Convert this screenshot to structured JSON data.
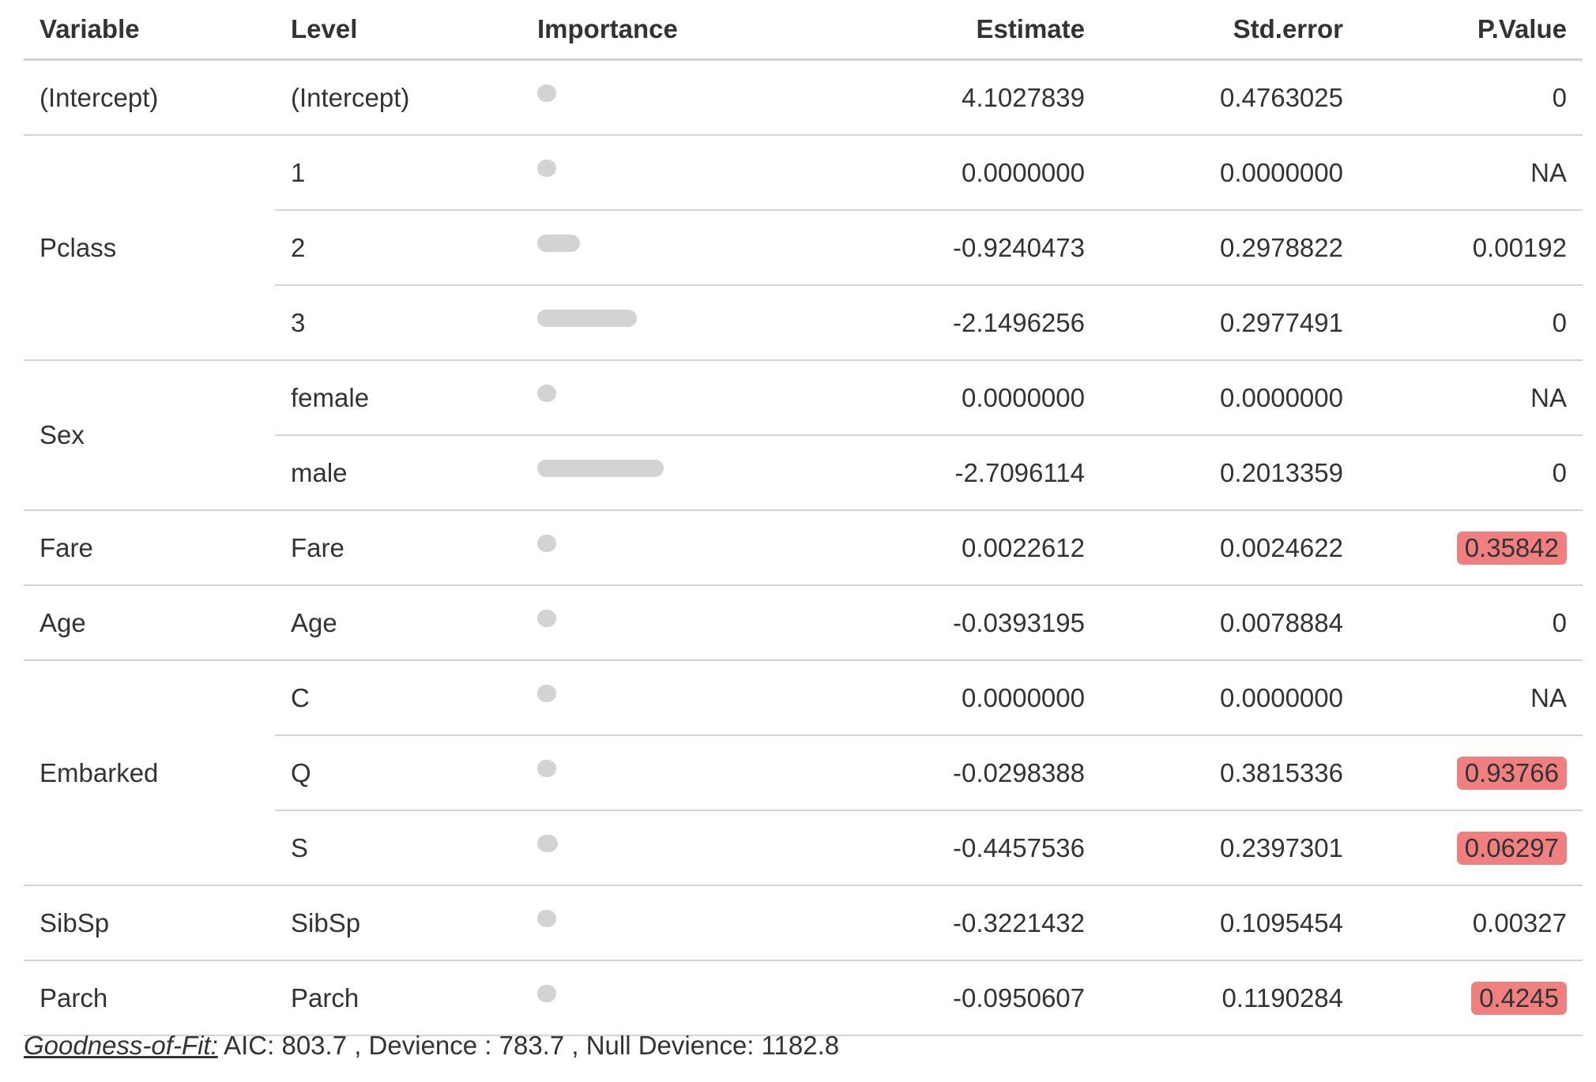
{
  "header": {
    "variable": "Variable",
    "level": "Level",
    "importance": "Importance",
    "estimate": "Estimate",
    "std_error": "Std.error",
    "p_value": "P.Value"
  },
  "rows": [
    {
      "variable": "(Intercept)",
      "level": "(Intercept)",
      "importance": 0.0,
      "estimate": "4.1027839",
      "std_error": "0.4763025",
      "p_value": "0",
      "highlight": false
    },
    {
      "variable": "Pclass",
      "level": "1",
      "importance": 0.0,
      "estimate": "0.0000000",
      "std_error": "0.0000000",
      "p_value": "NA",
      "highlight": false
    },
    {
      "variable": "",
      "level": "2",
      "importance": 0.34,
      "estimate": "-0.9240473",
      "std_error": "0.2978822",
      "p_value": "0.00192",
      "highlight": false
    },
    {
      "variable": "",
      "level": "3",
      "importance": 0.79,
      "estimate": "-2.1496256",
      "std_error": "0.2977491",
      "p_value": "0",
      "highlight": false
    },
    {
      "variable": "Sex",
      "level": "female",
      "importance": 0.0,
      "estimate": "0.0000000",
      "std_error": "0.0000000",
      "p_value": "NA",
      "highlight": false
    },
    {
      "variable": "",
      "level": "male",
      "importance": 1.0,
      "estimate": "-2.7096114",
      "std_error": "0.2013359",
      "p_value": "0",
      "highlight": false
    },
    {
      "variable": "Fare",
      "level": "Fare",
      "importance": 0.01,
      "estimate": "0.0022612",
      "std_error": "0.0024622",
      "p_value": "0.35842",
      "highlight": true
    },
    {
      "variable": "Age",
      "level": "Age",
      "importance": 0.01,
      "estimate": "-0.0393195",
      "std_error": "0.0078884",
      "p_value": "0",
      "highlight": false
    },
    {
      "variable": "Embarked",
      "level": "C",
      "importance": 0.0,
      "estimate": "0.0000000",
      "std_error": "0.0000000",
      "p_value": "NA",
      "highlight": false
    },
    {
      "variable": "",
      "level": "Q",
      "importance": 0.01,
      "estimate": "-0.0298388",
      "std_error": "0.3815336",
      "p_value": "0.93766",
      "highlight": true
    },
    {
      "variable": "",
      "level": "S",
      "importance": 0.16,
      "estimate": "-0.4457536",
      "std_error": "0.2397301",
      "p_value": "0.06297",
      "highlight": true
    },
    {
      "variable": "SibSp",
      "level": "SibSp",
      "importance": 0.12,
      "estimate": "-0.3221432",
      "std_error": "0.1095454",
      "p_value": "0.00327",
      "highlight": false
    },
    {
      "variable": "Parch",
      "level": "Parch",
      "importance": 0.04,
      "estimate": "-0.0950607",
      "std_error": "0.1190284",
      "p_value": "0.4245",
      "highlight": true
    }
  ],
  "footer": {
    "label": "Goodness-of-Fit:",
    "text": " AIC: 803.7 , Devience : 783.7 , Null Devience: 1182.8"
  },
  "colors": {
    "bar": "#d3d3d3",
    "highlight": "#f08080",
    "rule": "#d3d3d3"
  }
}
